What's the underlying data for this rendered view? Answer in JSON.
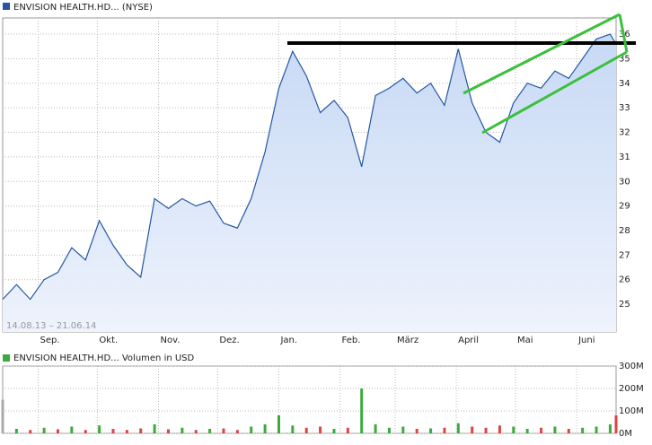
{
  "chart_data": [
    {
      "type": "line",
      "title": "ENVISION HEALTH.HD... (NYSE)",
      "annotation": "14.08.13 – 21.06.14",
      "x": [
        "14.08.13",
        "21.08.13",
        "28.08.13",
        "04.09.13",
        "11.09.13",
        "18.09.13",
        "25.09.13",
        "02.10.13",
        "09.10.13",
        "16.10.13",
        "23.10.13",
        "30.10.13",
        "06.11.13",
        "13.11.13",
        "20.11.13",
        "27.11.13",
        "04.12.13",
        "11.12.13",
        "18.12.13",
        "25.12.13",
        "01.01.14",
        "08.01.14",
        "15.01.14",
        "22.01.14",
        "29.01.14",
        "05.02.14",
        "12.02.14",
        "19.02.14",
        "26.02.14",
        "05.03.14",
        "12.03.14",
        "19.03.14",
        "26.03.14",
        "02.04.14",
        "09.04.14",
        "16.04.14",
        "23.04.14",
        "30.04.14",
        "07.05.14",
        "14.05.14",
        "21.05.14",
        "28.05.14",
        "04.06.14",
        "11.06.14",
        "18.06.14",
        "21.06.14"
      ],
      "series": [
        {
          "color": "#2456a4",
          "values": [
            25.2,
            25.8,
            25.2,
            26.0,
            26.3,
            27.3,
            26.8,
            28.4,
            27.4,
            26.6,
            26.1,
            29.3,
            28.9,
            29.3,
            29.0,
            29.2,
            28.3,
            28.1,
            29.3,
            31.2,
            33.8,
            35.3,
            34.3,
            32.8,
            33.3,
            32.6,
            30.6,
            33.5,
            33.8,
            34.2,
            33.6,
            34.0,
            33.1,
            35.4,
            33.2,
            32.0,
            31.6,
            33.2,
            34.0,
            33.8,
            34.5,
            34.2,
            35.0,
            35.8,
            36.0,
            35.6
          ]
        }
      ],
      "xlim": [
        "14.08.13",
        "21.06.14"
      ],
      "xticks": [
        {
          "value": "01.09.13",
          "label": "Sep."
        },
        {
          "value": "01.10.13",
          "label": "Okt."
        },
        {
          "value": "01.11.13",
          "label": "Nov."
        },
        {
          "value": "01.12.13",
          "label": "Dez."
        },
        {
          "value": "01.01.14",
          "label": "Jan."
        },
        {
          "value": "01.02.14",
          "label": "Feb."
        },
        {
          "value": "01.03.14",
          "label": "März"
        },
        {
          "value": "01.04.14",
          "label": "April"
        },
        {
          "value": "01.05.14",
          "label": "Mai"
        },
        {
          "value": "01.06.14",
          "label": "Juni"
        }
      ],
      "ylim": [
        23.87,
        36.66
      ],
      "yticks": [
        25,
        26,
        27,
        28,
        29,
        30,
        31,
        32,
        33,
        34,
        35,
        36
      ],
      "grid": true
    },
    {
      "type": "bar",
      "title": "ENVISION HEALTH.HD... Volumen in USD",
      "color": "#3caa3c",
      "x": [
        "14.08.13",
        "21.08.13",
        "28.08.13",
        "04.09.13",
        "11.09.13",
        "18.09.13",
        "25.09.13",
        "02.10.13",
        "09.10.13",
        "16.10.13",
        "23.10.13",
        "30.10.13",
        "06.11.13",
        "13.11.13",
        "20.11.13",
        "27.11.13",
        "04.12.13",
        "11.12.13",
        "18.12.13",
        "25.12.13",
        "01.01.14",
        "08.01.14",
        "15.01.14",
        "22.01.14",
        "29.01.14",
        "05.02.14",
        "12.02.14",
        "19.02.14",
        "26.02.14",
        "05.03.14",
        "12.03.14",
        "19.03.14",
        "26.03.14",
        "02.04.14",
        "09.04.14",
        "16.04.14",
        "23.04.14",
        "30.04.14",
        "07.05.14",
        "14.05.14",
        "21.05.14",
        "28.05.14",
        "04.06.14",
        "11.06.14",
        "18.06.14",
        "21.06.14"
      ],
      "values": [
        150000000,
        20000000,
        15000000,
        25000000,
        18000000,
        30000000,
        15000000,
        35000000,
        20000000,
        15000000,
        22000000,
        40000000,
        18000000,
        25000000,
        15000000,
        20000000,
        22000000,
        15000000,
        30000000,
        40000000,
        80000000,
        35000000,
        25000000,
        30000000,
        20000000,
        25000000,
        200000000,
        40000000,
        25000000,
        30000000,
        20000000,
        22000000,
        25000000,
        45000000,
        30000000,
        25000000,
        35000000,
        30000000,
        20000000,
        25000000,
        30000000,
        20000000,
        25000000,
        30000000,
        40000000,
        80000000
      ],
      "bar_colors": [
        "#aaaaaa",
        "#3caa3c",
        "#d44",
        "#3caa3c",
        "#d44",
        "#3caa3c",
        "#d44",
        "#3caa3c",
        "#d44",
        "#d44",
        "#d44",
        "#3caa3c",
        "#d44",
        "#3caa3c",
        "#d44",
        "#3caa3c",
        "#d44",
        "#d44",
        "#3caa3c",
        "#3caa3c",
        "#3caa3c",
        "#3caa3c",
        "#d44",
        "#d44",
        "#3caa3c",
        "#d44",
        "#3caa3c",
        "#3caa3c",
        "#3caa3c",
        "#3caa3c",
        "#d44",
        "#3caa3c",
        "#d44",
        "#3caa3c",
        "#d44",
        "#d44",
        "#d44",
        "#3caa3c",
        "#3caa3c",
        "#d44",
        "#3caa3c",
        "#d44",
        "#3caa3c",
        "#3caa3c",
        "#3caa3c",
        "#d44"
      ],
      "xlim": [
        "14.08.13",
        "21.06.14"
      ],
      "ylim": [
        0,
        300000000
      ],
      "yticks": [
        {
          "value": 0,
          "label": "0M"
        },
        {
          "value": 100000000,
          "label": "100M"
        },
        {
          "value": 200000000,
          "label": "200M"
        },
        {
          "value": 300000000,
          "label": "300M"
        }
      ],
      "grid": true
    }
  ]
}
